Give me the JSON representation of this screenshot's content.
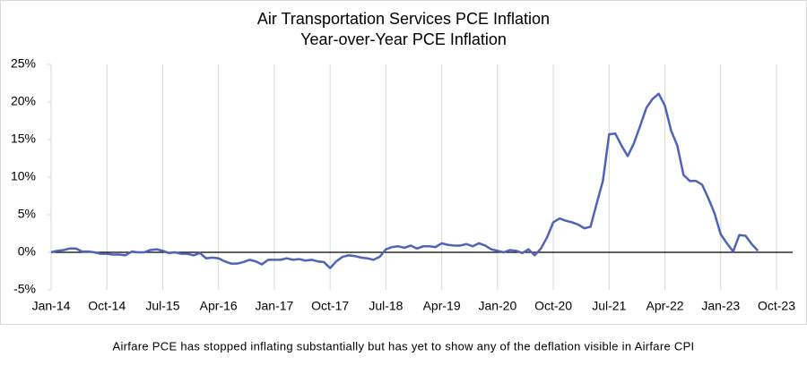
{
  "chart_data": {
    "type": "line",
    "title": "Air Transportation Services PCE Inflation",
    "subtitle": "Year-over-Year PCE Inflation",
    "annotation": "Airfare PCE has stopped inflating substantially but has yet to show any of the deflation visible in Airfare CPI",
    "categories": [
      "Jan-14",
      null,
      null,
      null,
      null,
      null,
      null,
      null,
      null,
      "Oct-14",
      null,
      null,
      null,
      null,
      null,
      null,
      null,
      null,
      "Jul-15",
      null,
      null,
      null,
      null,
      null,
      null,
      null,
      null,
      "Apr-16",
      null,
      null,
      null,
      null,
      null,
      null,
      null,
      null,
      "Jan-17",
      null,
      null,
      null,
      null,
      null,
      null,
      null,
      null,
      "Oct-17",
      null,
      null,
      null,
      null,
      null,
      null,
      null,
      null,
      "Jul-18",
      null,
      null,
      null,
      null,
      null,
      null,
      null,
      null,
      "Apr-19",
      null,
      null,
      null,
      null,
      null,
      null,
      null,
      null,
      "Jan-20",
      null,
      null,
      null,
      null,
      null,
      null,
      null,
      null,
      "Oct-20",
      null,
      null,
      null,
      null,
      null,
      null,
      null,
      null,
      "Jul-21",
      null,
      null,
      null,
      null,
      null,
      null,
      null,
      null,
      "Apr-22",
      null,
      null,
      null,
      null,
      null,
      null,
      null,
      null,
      "Jan-23",
      null,
      null,
      null,
      null,
      null,
      null,
      null,
      null,
      "Oct-23"
    ],
    "values": [
      0,
      0.2,
      0.3,
      0.5,
      0.5,
      0.1,
      0.1,
      0.0,
      -0.2,
      -0.2,
      -0.3,
      -0.3,
      -0.4,
      0.1,
      0.0,
      0.0,
      0.3,
      0.4,
      0.2,
      -0.1,
      0.0,
      -0.2,
      -0.2,
      -0.4,
      -0.1,
      -0.8,
      -0.7,
      -0.8,
      -1.2,
      -1.5,
      -1.5,
      -1.3,
      -1.0,
      -1.2,
      -1.6,
      -1.0,
      -1.0,
      -1.0,
      -0.8,
      -1.0,
      -0.9,
      -1.1,
      -1.0,
      -1.2,
      -1.3,
      -2.1,
      -1.2,
      -0.6,
      -0.4,
      -0.5,
      -0.7,
      -0.8,
      -1.0,
      -0.6,
      0.4,
      0.7,
      0.8,
      0.6,
      0.9,
      0.5,
      0.8,
      0.8,
      0.7,
      1.2,
      1.0,
      0.9,
      0.9,
      1.1,
      0.8,
      1.2,
      0.9,
      0.4,
      0.2,
      0.0,
      0.3,
      0.2,
      -0.1,
      0.4,
      -0.4,
      0.5,
      2.0,
      4.0,
      4.5,
      4.2,
      4.0,
      3.7,
      3.2,
      3.4,
      6.5,
      9.5,
      15.7,
      15.8,
      14.2,
      12.8,
      14.5,
      16.8,
      19.2,
      20.4,
      21.1,
      19.5,
      16.2,
      14.2,
      10.3,
      9.5,
      9.5,
      9.0,
      7.2,
      5.2,
      2.4,
      1.2,
      0.1,
      2.3,
      2.2,
      1.1,
      0.2,
      null,
      null,
      null
    ],
    "color": "#4f63b8",
    "ylim": [
      -5,
      25
    ],
    "yticks": [
      {
        "value": -5,
        "label": "-5%"
      },
      {
        "value": 0,
        "label": "0%"
      },
      {
        "value": 5,
        "label": "5%"
      },
      {
        "value": 10,
        "label": "10%"
      },
      {
        "value": 15,
        "label": "15%"
      },
      {
        "value": 20,
        "label": "20%"
      },
      {
        "value": 25,
        "label": "25%"
      }
    ]
  }
}
